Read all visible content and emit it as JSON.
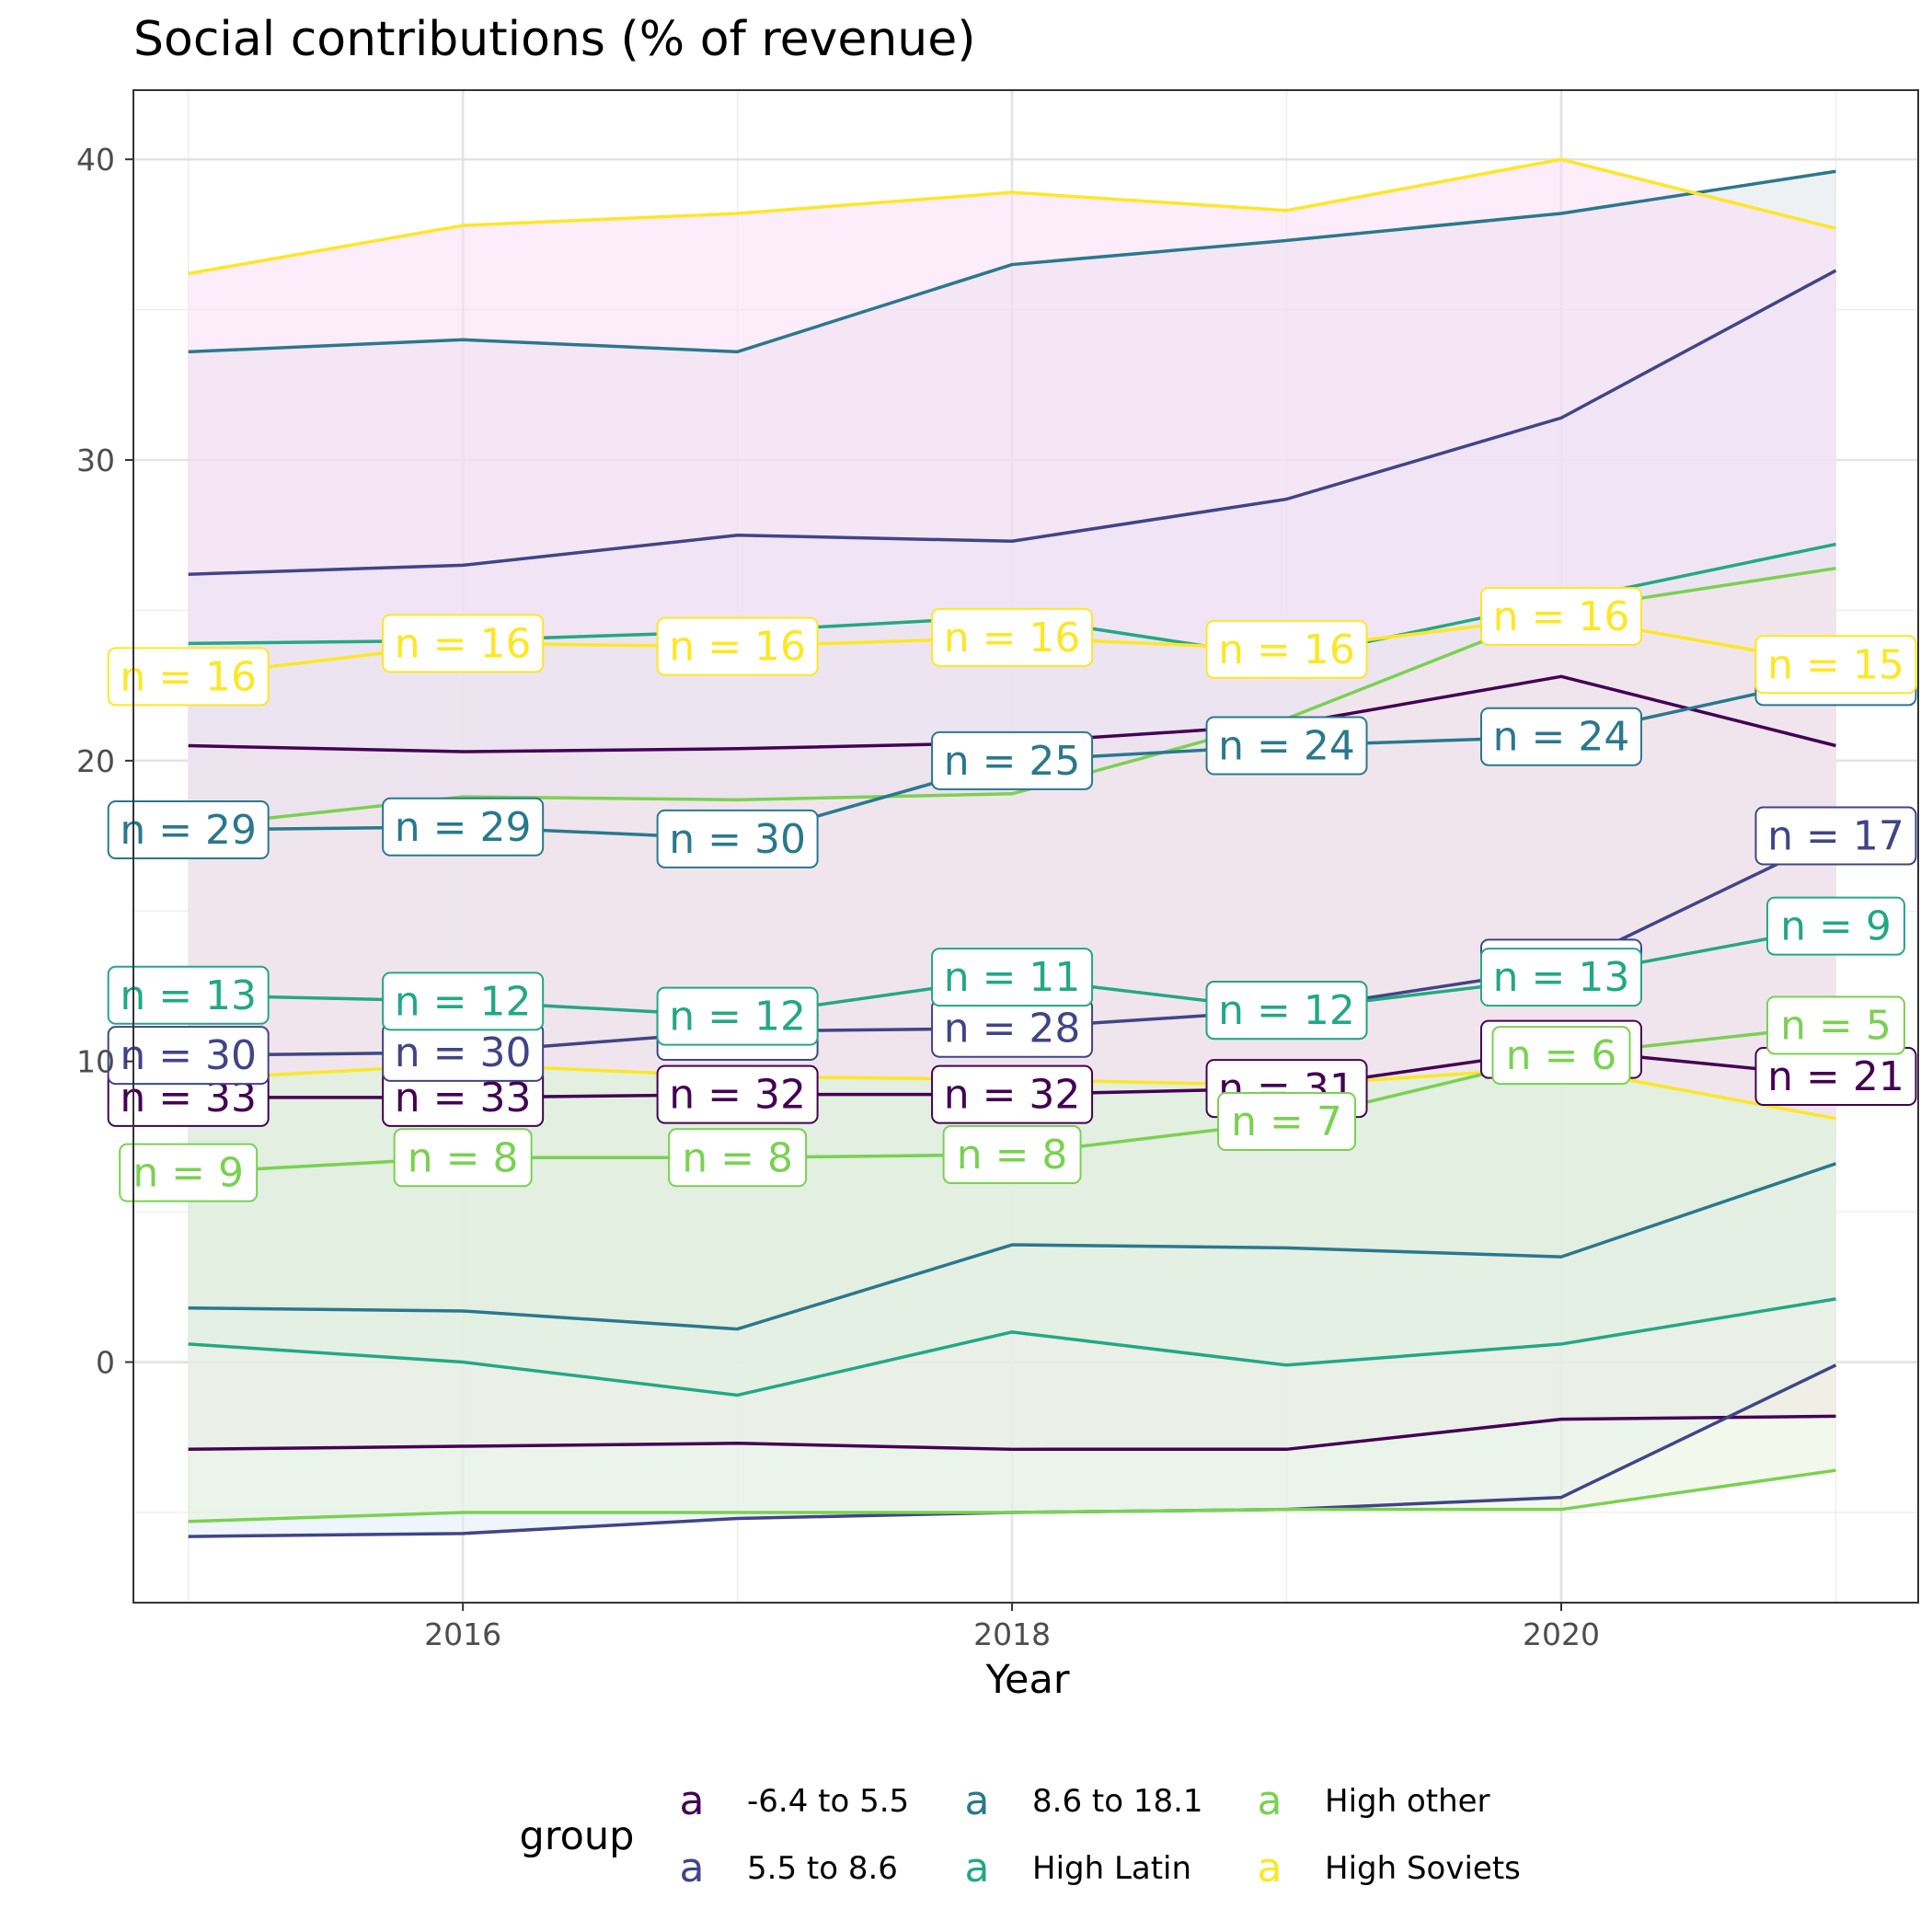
{
  "chart_data": {
    "type": "line",
    "title": "Social contributions (% of revenue)",
    "xlabel": "Year",
    "ylabel": "",
    "xlim": [
      2014.8,
      2021.3
    ],
    "ylim": [
      -8,
      42.3
    ],
    "x_ticks": [
      2016,
      2018,
      2020
    ],
    "x_tick_labels": [
      "2016",
      "2018",
      "2020"
    ],
    "y_ticks": [
      0,
      10,
      20,
      30,
      40
    ],
    "y_tick_labels": [
      "0",
      "10",
      "20",
      "30",
      "40"
    ],
    "grid": true,
    "legend": {
      "title": "group",
      "position": "bottom",
      "key_glyph": "a"
    },
    "x": [
      2015,
      2016,
      2017,
      2018,
      2019,
      2020,
      2021
    ],
    "series": [
      {
        "name": "-6.4 to 5.5",
        "color": "#440154",
        "ribbon_fill": "#f2dce5",
        "median": [
          8.8,
          8.8,
          8.9,
          8.9,
          9.1,
          10.4,
          9.5
        ],
        "upper": [
          20.5,
          20.3,
          20.4,
          20.6,
          21.2,
          22.8,
          20.5
        ],
        "lower": [
          -2.9,
          -2.8,
          -2.7,
          -2.9,
          -2.9,
          -1.9,
          -1.8
        ],
        "n": [
          33,
          33,
          32,
          32,
          31,
          30,
          21
        ]
      },
      {
        "name": "5.5 to 8.6",
        "color": "#414487",
        "ribbon_fill": "#e0ecfa",
        "median": [
          10.2,
          10.3,
          11.0,
          11.1,
          11.7,
          13.1,
          17.5
        ],
        "upper": [
          26.2,
          26.5,
          27.5,
          27.3,
          28.7,
          31.4,
          36.3
        ],
        "lower": [
          -5.8,
          -5.7,
          -5.2,
          -5.0,
          -4.9,
          -4.5,
          -0.1
        ],
        "n": [
          30,
          30,
          30,
          28,
          27,
          28,
          17
        ]
      },
      {
        "name": "8.6 to 18.1",
        "color": "#2a788e",
        "ribbon_fill": "#dfe6ea",
        "median": [
          17.7,
          17.8,
          17.4,
          20.0,
          20.5,
          20.8,
          22.8
        ],
        "upper": [
          33.6,
          34.0,
          33.6,
          36.5,
          37.3,
          38.2,
          39.6
        ],
        "lower": [
          1.8,
          1.7,
          1.1,
          3.9,
          3.8,
          3.5,
          6.6
        ],
        "n": [
          29,
          29,
          30,
          25,
          24,
          24,
          15
        ]
      },
      {
        "name": "High Latin",
        "color": "#22a884",
        "ribbon_fill": "#d2efe0",
        "median": [
          12.2,
          12.0,
          11.5,
          12.8,
          11.7,
          12.8,
          14.5
        ],
        "upper": [
          23.9,
          24.0,
          24.3,
          24.8,
          23.4,
          25.3,
          27.2
        ],
        "lower": [
          0.6,
          0.0,
          -1.1,
          1.0,
          -0.1,
          0.6,
          2.1
        ],
        "n": [
          13,
          12,
          12,
          11,
          12,
          13,
          9
        ]
      },
      {
        "name": "High other",
        "color": "#7ad151",
        "ribbon_fill": "#eaf2dc",
        "median": [
          6.3,
          6.8,
          6.8,
          6.9,
          8.0,
          10.2,
          11.2
        ],
        "upper": [
          17.8,
          18.8,
          18.7,
          18.9,
          21.4,
          25.0,
          26.4
        ],
        "lower": [
          -5.3,
          -5.0,
          -5.0,
          -5.0,
          -4.9,
          -4.9,
          -3.6
        ],
        "n": [
          9,
          8,
          8,
          8,
          7,
          6,
          5
        ]
      },
      {
        "name": "High Soviets",
        "color": "#fde725",
        "ribbon_fill": "#fcdcf6",
        "median": [
          22.8,
          23.9,
          23.8,
          24.1,
          23.7,
          24.8,
          23.2
        ],
        "upper": [
          36.2,
          37.8,
          38.2,
          38.9,
          38.3,
          40.0,
          37.7
        ],
        "lower": [
          9.4,
          9.9,
          9.5,
          9.4,
          9.2,
          9.8,
          8.1
        ],
        "n": [
          16,
          16,
          16,
          16,
          16,
          16,
          15
        ]
      }
    ]
  }
}
